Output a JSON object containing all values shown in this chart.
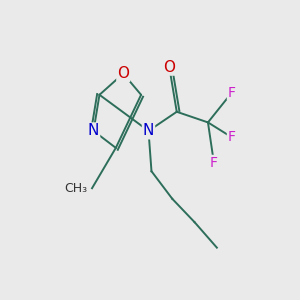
{
  "background_color": "#eaeaea",
  "bond_color": "#2d6e5a",
  "xlim": [
    0,
    10
  ],
  "ylim": [
    2.0,
    9.0
  ],
  "figsize": [
    3.0,
    3.0
  ],
  "dpi": 100,
  "lw": 1.4
}
